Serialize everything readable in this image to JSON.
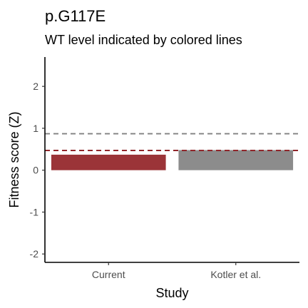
{
  "chart_data": {
    "type": "bar",
    "title": "p.G117E",
    "subtitle": "WT level indicated by colored lines",
    "xlabel": "Study",
    "ylabel": "Fitness score (Z)",
    "categories": [
      "Current",
      "Kotler et al."
    ],
    "values": [
      0.37,
      0.48
    ],
    "bar_colors": [
      "#9b3438",
      "#8c8c8c"
    ],
    "wt_levels": [
      {
        "value": 0.47,
        "color": "#8b1a1f"
      },
      {
        "value": 0.87,
        "color": "#808080"
      }
    ],
    "ylim": [
      -2.2,
      2.7
    ],
    "yticks": [
      -2,
      -1,
      0,
      1,
      2
    ],
    "ytick_labels": [
      "-2",
      "-1",
      "0",
      "1",
      "2"
    ],
    "grid": false,
    "legend": "none"
  }
}
